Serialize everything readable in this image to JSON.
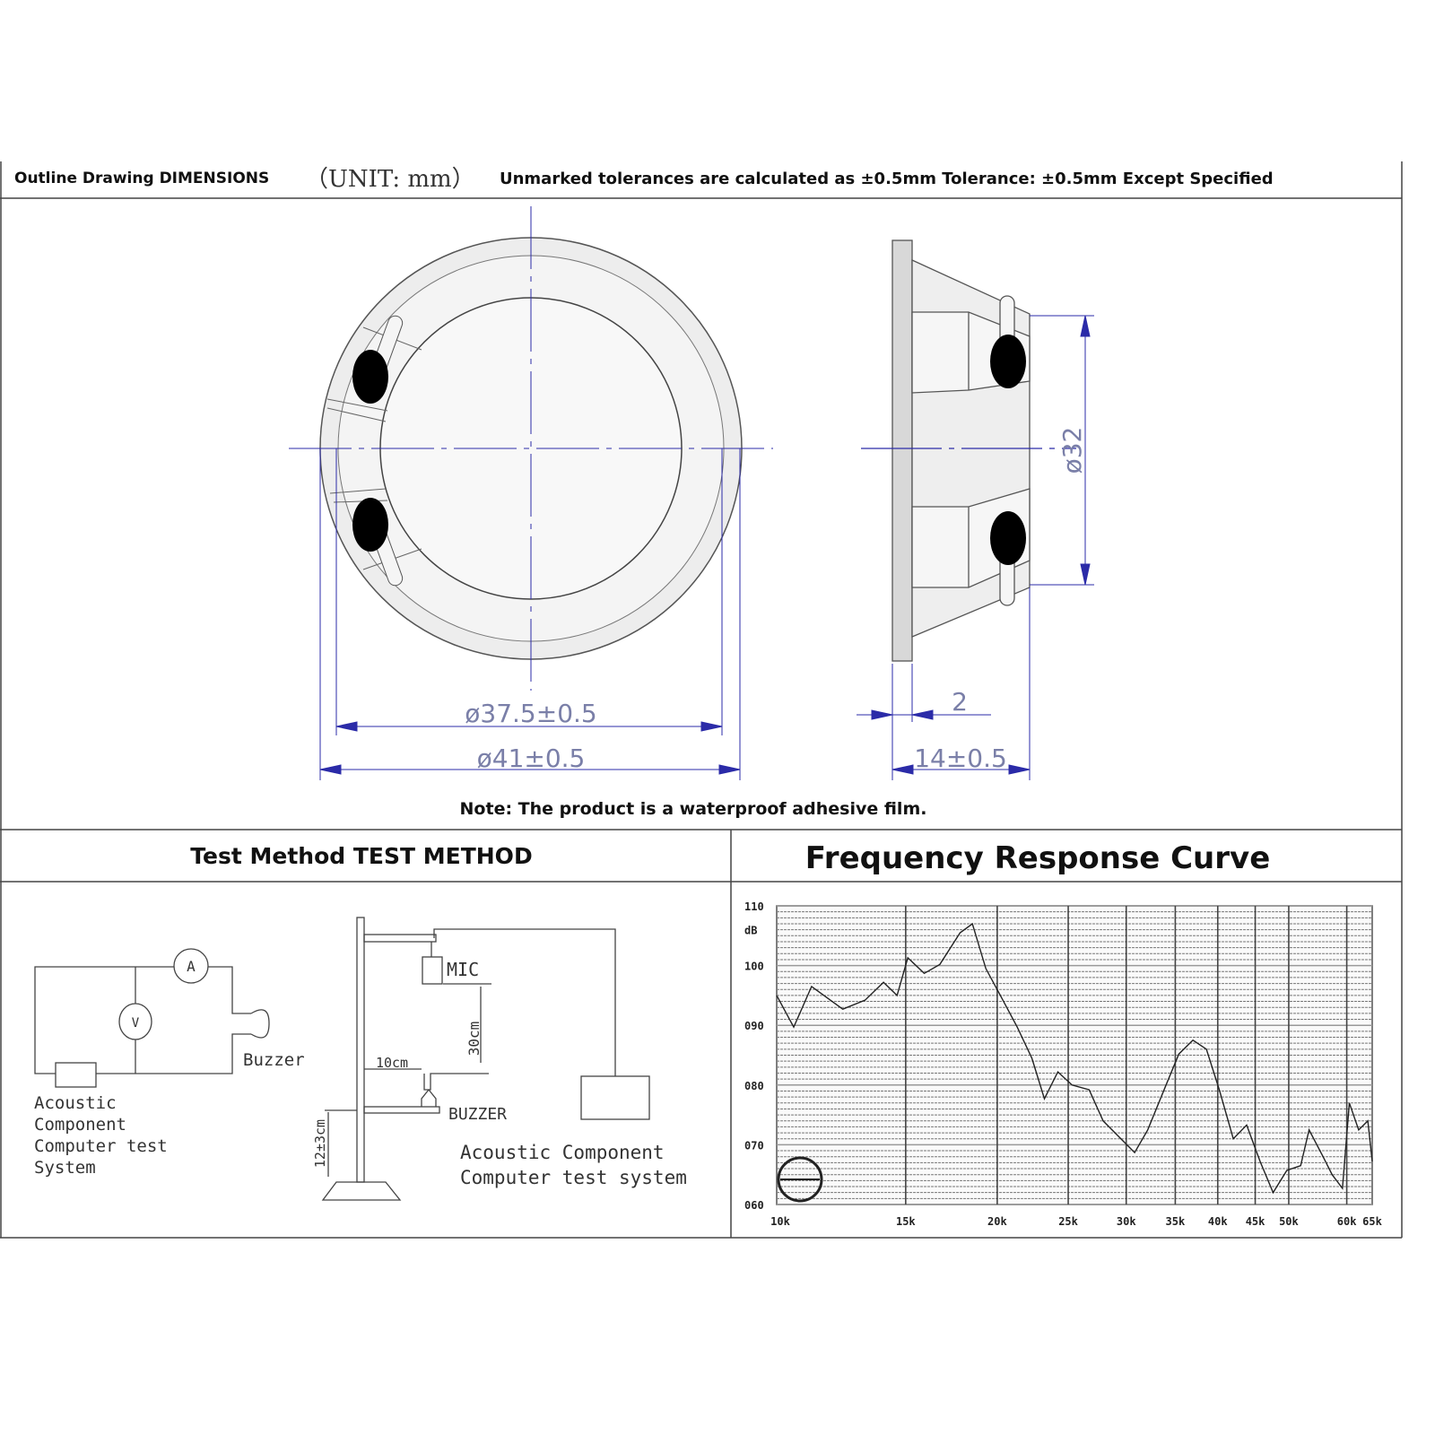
{
  "header": {
    "title": "Outline Drawing DIMENSIONS",
    "unit": "（UNIT: mm）",
    "tolerance_note": "Unmarked tolerances are calculated as ±0.5mm Tolerance: ±0.5mm Except Specified"
  },
  "outline": {
    "dim_inner": "ø37.5±0.5",
    "dim_outer": "ø41±0.5",
    "dim_side_diameter": "ø32",
    "dim_flange": "2",
    "dim_depth": "14±0.5",
    "note": "Note: The product is a waterproof adhesive film.",
    "line_color": "#2b2ba8"
  },
  "test_method": {
    "title": "Test Method TEST METHOD",
    "ammeter": "A",
    "voltmeter": "V",
    "buzzer_label": "Buzzer",
    "system_label_lines": [
      "Acoustic",
      "Component",
      "Computer test",
      "System"
    ],
    "mic_label": "MIC",
    "dist_30": "30cm",
    "dist_10": "10cm",
    "buzzer_upper": "BUZZER",
    "dist_12": "12±3cm",
    "system_label_right": [
      "Acoustic Component",
      "Computer test system"
    ]
  },
  "frequency": {
    "title": "Frequency Response Curve"
  },
  "chart_data": {
    "type": "line",
    "title": "Frequency Response Curve",
    "x_scale": "log",
    "xlim": [
      10,
      65
    ],
    "ylim": [
      60,
      110
    ],
    "x_unit": "k",
    "y_unit": "dB",
    "x_ticks": [
      {
        "v": 10,
        "label": "10k"
      },
      {
        "v": 15,
        "label": "15k"
      },
      {
        "v": 20,
        "label": "20k"
      },
      {
        "v": 25,
        "label": "25k"
      },
      {
        "v": 30,
        "label": "30k"
      },
      {
        "v": 35,
        "label": "35k"
      },
      {
        "v": 40,
        "label": "40k"
      },
      {
        "v": 45,
        "label": "45k"
      },
      {
        "v": 50,
        "label": "50k"
      },
      {
        "v": 60,
        "label": "60k"
      },
      {
        "v": 65,
        "label": "65k"
      }
    ],
    "y_ticks": [
      {
        "v": 110,
        "label": "110"
      },
      {
        "v": 100,
        "label": "100"
      },
      {
        "v": 90,
        "label": "090"
      },
      {
        "v": 80,
        "label": "080"
      },
      {
        "v": 70,
        "label": "070"
      },
      {
        "v": 60,
        "label": "060"
      }
    ],
    "y_unit_label": "dB",
    "grid": true,
    "x": [
      10,
      10.55,
      11.16,
      12.31,
      13.2,
      13.99,
      14.6,
      15.1,
      15.9,
      16.7,
      17.8,
      18.5,
      19.3,
      20.2,
      21.3,
      22.3,
      23.2,
      24.2,
      25.3,
      26.7,
      27.9,
      29.5,
      30.8,
      32.1,
      34,
      35.4,
      37,
      38.6,
      40.2,
      42,
      43.8,
      45.7,
      47.6,
      49.7,
      51.9,
      53.3,
      55.7,
      57.3,
      59.2,
      60.5,
      62.3,
      64.1,
      65
    ],
    "y": [
      95,
      89.7,
      96.5,
      92.7,
      94.2,
      97.2,
      95,
      101.3,
      98.7,
      100.2,
      105.5,
      107,
      99.5,
      95,
      89.7,
      84.5,
      77.7,
      82.2,
      80,
      79.2,
      74,
      71,
      68.7,
      72.5,
      80,
      85.2,
      87.5,
      86,
      79.2,
      71,
      73.3,
      67.2,
      62,
      65.7,
      66.5,
      72.5,
      68,
      65,
      62.7,
      77,
      72.5,
      74,
      67.2
    ]
  }
}
